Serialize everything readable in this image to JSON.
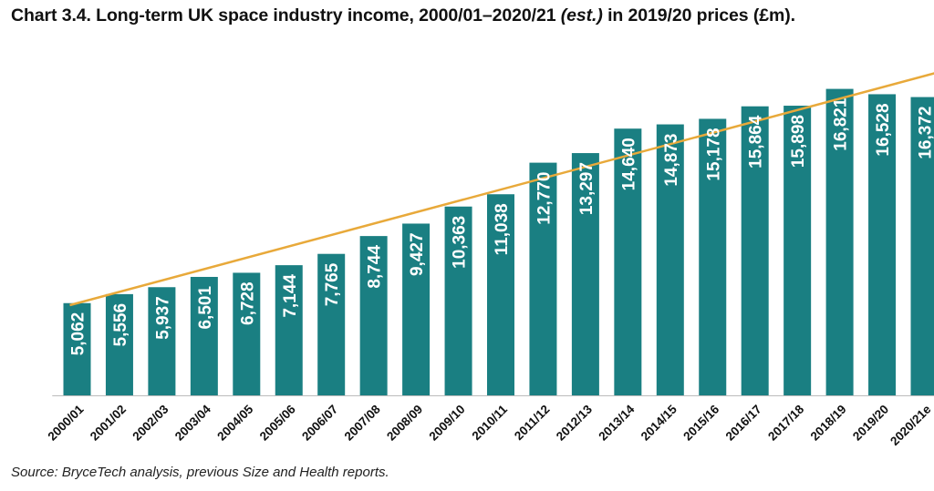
{
  "title": {
    "main": "Chart 3.4. Long-term UK space industry income, 2000/01–2020/21 ",
    "italic": "(est.)",
    "tail": " in 2019/20 prices (£m)."
  },
  "source": "Source: BryceTech analysis, previous Size and Health reports.",
  "colors": {
    "bar": "#1a7f82",
    "trend": "#e8a93a",
    "axis": "#bbbbbb"
  },
  "chart_data": {
    "type": "bar",
    "title": "Chart 3.4. Long-term UK space industry income, 2000/01–2020/21 (est.) in 2019/20 prices (£m).",
    "xlabel": "",
    "ylabel": "",
    "ylim": [
      0,
      20000
    ],
    "grid": false,
    "categories": [
      "2000/01",
      "2001/02",
      "2002/03",
      "2003/04",
      "2004/05",
      "2005/06",
      "2006/07",
      "2007/08",
      "2008/09",
      "2009/10",
      "2010/11",
      "2011/12",
      "2012/13",
      "2013/14",
      "2014/15",
      "2015/16",
      "2016/17",
      "2017/18",
      "2018/19",
      "2019/20",
      "2020/21e"
    ],
    "values": [
      5062,
      5556,
      5937,
      6501,
      6728,
      7144,
      7765,
      8744,
      9427,
      10363,
      11038,
      12770,
      13297,
      14640,
      14873,
      15178,
      15864,
      15898,
      16821,
      16528,
      16372
    ],
    "data_labels": [
      "5,062",
      "5,556",
      "5,937",
      "6,501",
      "6,728",
      "7,144",
      "7,765",
      "8,744",
      "9,427",
      "10,363",
      "11,038",
      "12,770",
      "13,297",
      "14,640",
      "14,873",
      "15,178",
      "15,864",
      "15,898",
      "16,821",
      "16,528",
      "16,372"
    ],
    "trendline": {
      "type": "linear",
      "start_value": 4950,
      "end_value": 17800
    }
  }
}
